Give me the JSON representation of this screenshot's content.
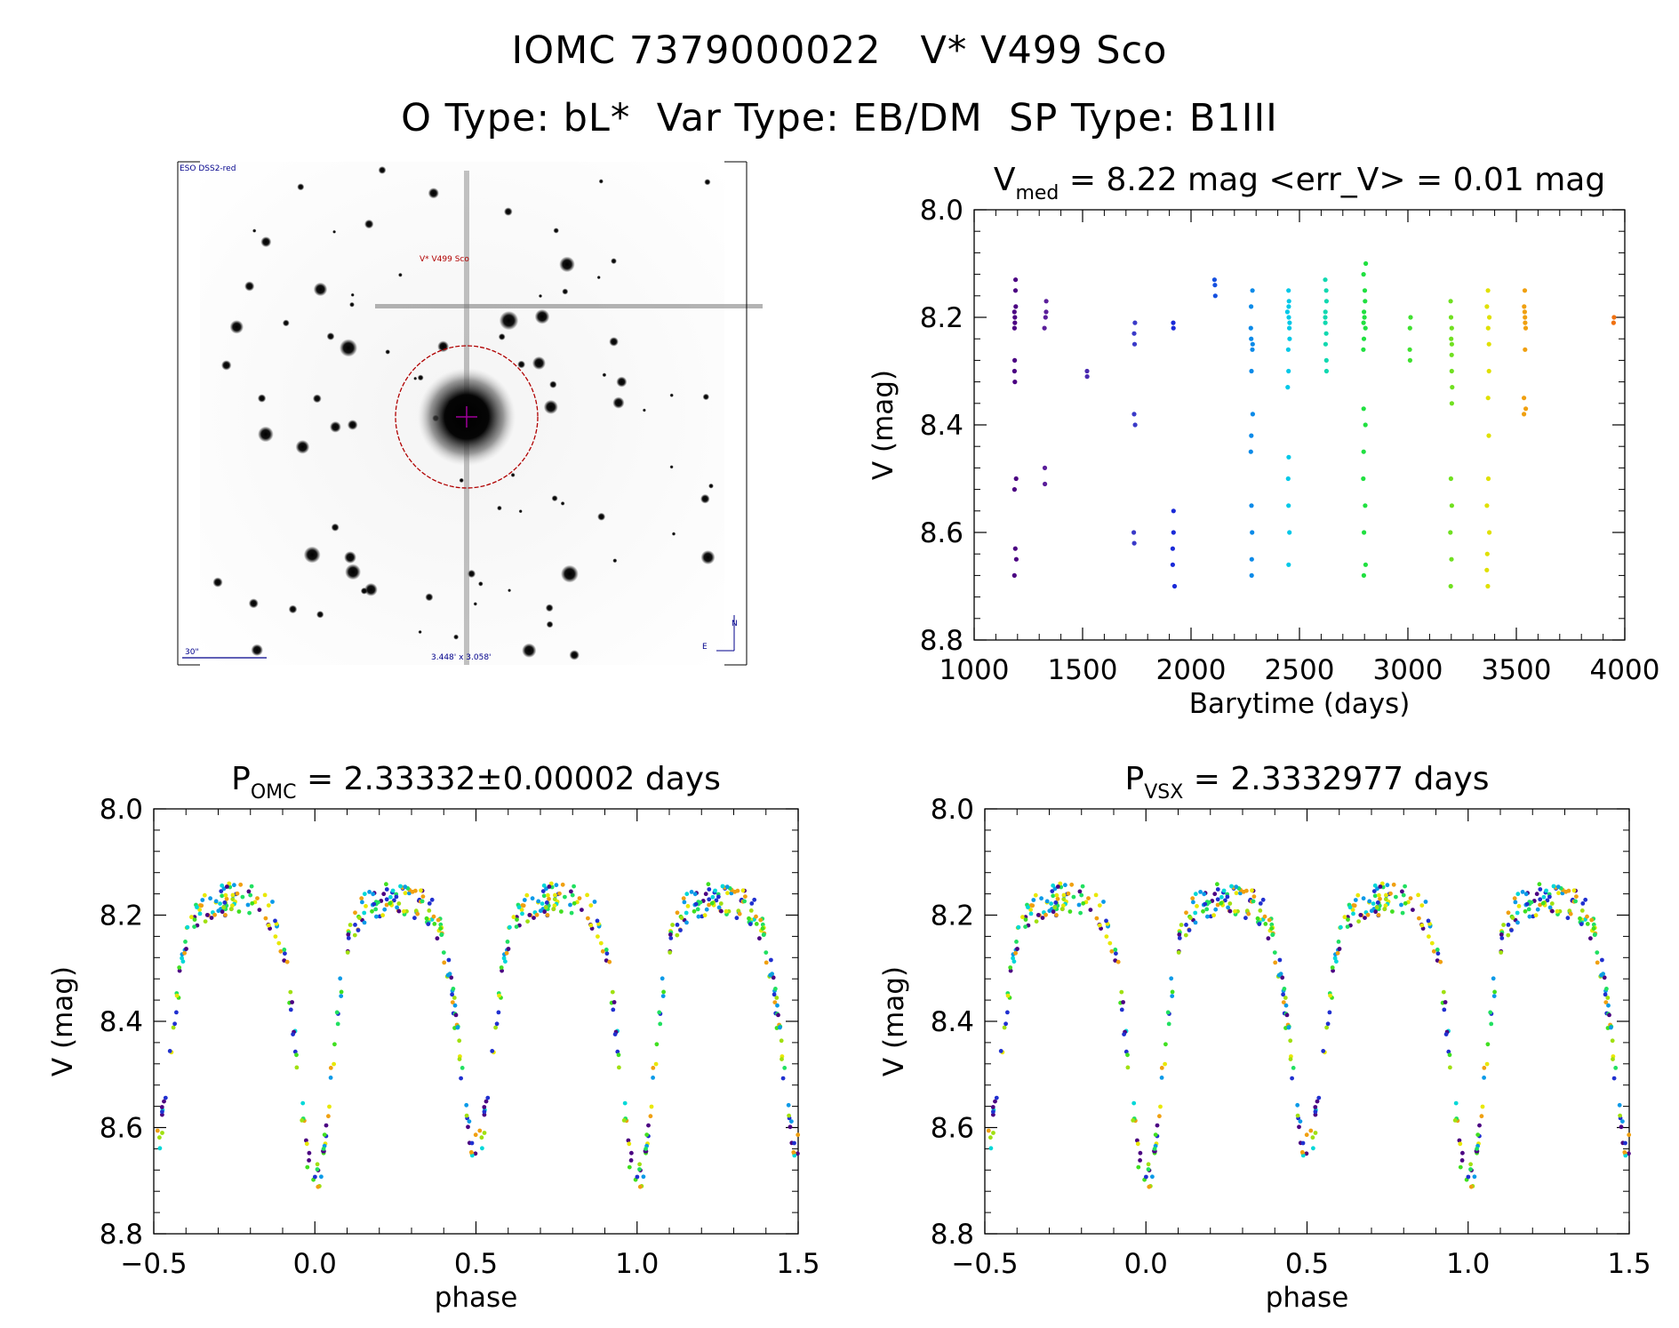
{
  "header": {
    "title_line1": "IOMC 7379000022   V* V499 Sco",
    "title_line2": "O Type: bL*  Var Type: EB/DM  SP Type: B1III"
  },
  "finder_chart": {
    "label_top_left": "ESO DSS2-red",
    "target_label": "V* V499 Sco",
    "scale_label": "30\"",
    "fov_label": "3.448' x 3.058'",
    "north_label": "N",
    "east_label": "E",
    "colors": {
      "label": "#00008b",
      "target": "#b00000",
      "marker": "#a0009a"
    }
  },
  "chart_data": [
    {
      "id": "lightcurve",
      "type": "scatter",
      "title_main": "V",
      "title_sub": "med",
      "title_rest": " = 8.22 mag <err_V> = 0.01 mag",
      "xlabel": "Barytime (days)",
      "ylabel": "V (mag)",
      "xlim": [
        1000,
        4000
      ],
      "ylim": [
        8.8,
        8.0
      ],
      "xticks": [
        "1000",
        "1500",
        "2000",
        "2500",
        "3000",
        "3500",
        "4000"
      ],
      "yticks": [
        "8.0",
        "8.2",
        "8.4",
        "8.6",
        "8.8"
      ],
      "grid": false,
      "groups": [
        {
          "x": 1190,
          "spread": 25,
          "color": "#4b0082",
          "values": [
            8.13,
            8.15,
            8.18,
            8.19,
            8.2,
            8.21,
            8.22,
            8.28,
            8.3,
            8.32,
            8.5,
            8.52,
            8.63,
            8.65,
            8.68
          ]
        },
        {
          "x": 1330,
          "spread": 30,
          "color": "#5a1e9a",
          "values": [
            8.17,
            8.19,
            8.2,
            8.22,
            8.48,
            8.51
          ]
        },
        {
          "x": 1520,
          "spread": 6,
          "color": "#4a2ab0",
          "values": [
            8.3,
            8.31
          ]
        },
        {
          "x": 1740,
          "spread": 20,
          "color": "#3a3ac8",
          "values": [
            8.21,
            8.23,
            8.25,
            8.38,
            8.4,
            8.6,
            8.62
          ]
        },
        {
          "x": 1920,
          "spread": 25,
          "color": "#1a2ad8",
          "values": [
            8.21,
            8.22,
            8.56,
            8.6,
            8.63,
            8.66,
            8.7
          ]
        },
        {
          "x": 2110,
          "spread": 10,
          "color": "#1550e0",
          "values": [
            8.13,
            8.14,
            8.16
          ]
        },
        {
          "x": 2280,
          "spread": 25,
          "color": "#0a8ae8",
          "values": [
            8.15,
            8.18,
            8.22,
            8.24,
            8.25,
            8.26,
            8.3,
            8.38,
            8.42,
            8.45,
            8.55,
            8.6,
            8.65,
            8.68
          ]
        },
        {
          "x": 2450,
          "spread": 30,
          "color": "#00c8e8",
          "values": [
            8.15,
            8.17,
            8.18,
            8.19,
            8.2,
            8.21,
            8.22,
            8.24,
            8.26,
            8.3,
            8.33,
            8.46,
            8.5,
            8.55,
            8.6,
            8.66
          ]
        },
        {
          "x": 2620,
          "spread": 25,
          "color": "#10d8b0",
          "values": [
            8.13,
            8.15,
            8.17,
            8.19,
            8.2,
            8.21,
            8.23,
            8.25,
            8.28,
            8.3
          ]
        },
        {
          "x": 2800,
          "spread": 30,
          "color": "#20e040",
          "values": [
            8.1,
            8.12,
            8.15,
            8.17,
            8.19,
            8.2,
            8.21,
            8.22,
            8.24,
            8.26,
            8.37,
            8.4,
            8.45,
            8.5,
            8.55,
            8.6,
            8.66,
            8.68
          ]
        },
        {
          "x": 3010,
          "spread": 12,
          "color": "#40e030",
          "values": [
            8.2,
            8.22,
            8.26,
            8.28
          ]
        },
        {
          "x": 3200,
          "spread": 25,
          "color": "#70e020",
          "values": [
            8.17,
            8.2,
            8.22,
            8.24,
            8.25,
            8.27,
            8.3,
            8.33,
            8.36,
            8.5,
            8.55,
            8.6,
            8.65,
            8.7
          ]
        },
        {
          "x": 3370,
          "spread": 30,
          "color": "#e0e000",
          "values": [
            8.15,
            8.18,
            8.2,
            8.22,
            8.25,
            8.3,
            8.35,
            8.42,
            8.5,
            8.55,
            8.6,
            8.64,
            8.67,
            8.7
          ]
        },
        {
          "x": 3540,
          "spread": 25,
          "color": "#f0a010",
          "values": [
            8.15,
            8.18,
            8.19,
            8.2,
            8.21,
            8.22,
            8.26,
            8.35,
            8.37,
            8.38
          ]
        },
        {
          "x": 3950,
          "spread": 8,
          "color": "#f07010",
          "values": [
            8.2,
            8.21
          ]
        }
      ]
    },
    {
      "id": "phase_omc",
      "type": "scatter",
      "title_main": "P",
      "title_sub": "OMC",
      "title_rest": " = 2.33332±0.00002 days",
      "xlabel": "phase",
      "ylabel": "V (mag)",
      "xlim": [
        -0.5,
        1.5
      ],
      "ylim": [
        8.8,
        8.0
      ],
      "xticks": [
        "−0.5",
        "0.0",
        "0.5",
        "1.0",
        "1.5"
      ],
      "yticks": [
        "8.0",
        "8.2",
        "8.4",
        "8.6",
        "8.8"
      ],
      "grid": false,
      "curve": {
        "max_mag": 8.19,
        "primary_depth": 8.68,
        "secondary_depth": 8.62,
        "scatter": 0.03
      }
    },
    {
      "id": "phase_vsx",
      "type": "scatter",
      "title_main": "P",
      "title_sub": "VSX",
      "title_rest": " = 2.3332977 days",
      "xlabel": "phase",
      "ylabel": "V (mag)",
      "xlim": [
        -0.5,
        1.5
      ],
      "ylim": [
        8.8,
        8.0
      ],
      "xticks": [
        "−0.5",
        "0.0",
        "0.5",
        "1.0",
        "1.5"
      ],
      "yticks": [
        "8.0",
        "8.2",
        "8.4",
        "8.6",
        "8.8"
      ],
      "grid": false,
      "curve": {
        "max_mag": 8.19,
        "primary_depth": 8.68,
        "secondary_depth": 8.62,
        "scatter": 0.03
      }
    }
  ]
}
